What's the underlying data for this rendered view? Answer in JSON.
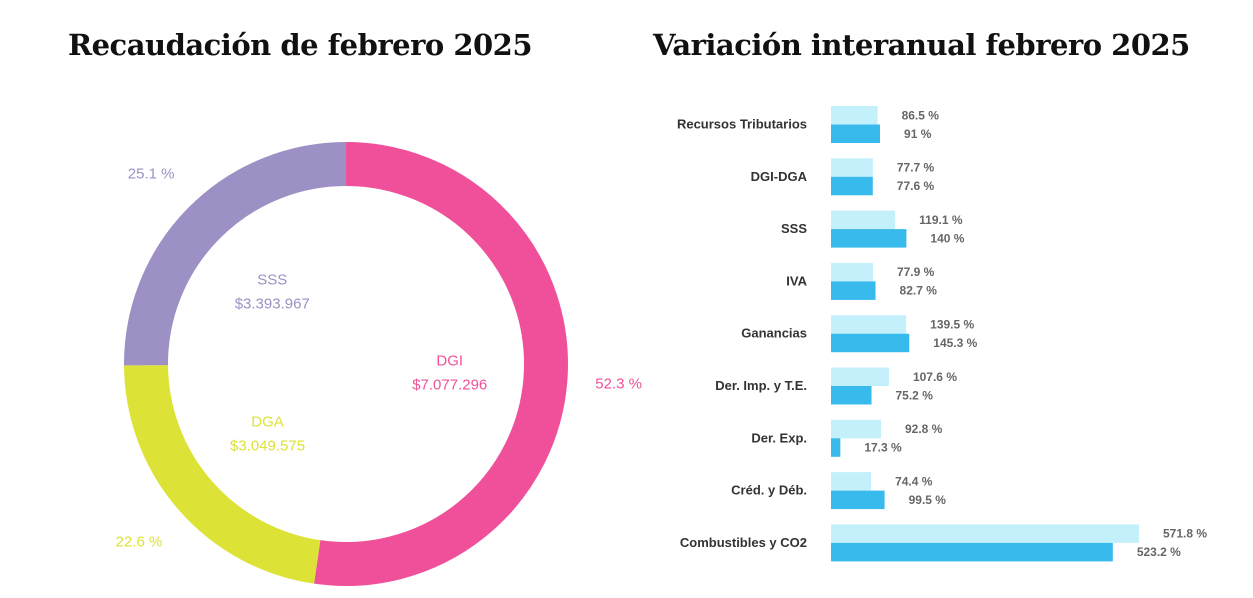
{
  "titles": {
    "left": "Recaudación de febrero 2025",
    "right": "Variación interanual febrero 2025"
  },
  "chart_data": [
    {
      "type": "pie",
      "title": "Recaudación de febrero 2025",
      "slices": [
        {
          "name": "DGI",
          "value": "$7.077.296",
          "amount": 7077296,
          "percent": 52.3,
          "percent_label": "52.3 %",
          "color": "#F0509A"
        },
        {
          "name": "DGA",
          "value": "$3.049.575",
          "amount": 3049575,
          "percent": 22.6,
          "percent_label": "22.6 %",
          "color": "#DCE236"
        },
        {
          "name": "SSS",
          "value": "$3.393.967",
          "amount": 3393967,
          "percent": 25.1,
          "percent_label": "25.1 %",
          "color": "#9D90C4"
        }
      ]
    },
    {
      "type": "bar",
      "title": "Variación interanual febrero 2025",
      "orientation": "horizontal",
      "categories": [
        "Recursos Tributarios",
        "DGI-DGA",
        "SSS",
        "IVA",
        "Ganancias",
        "Der. Imp. y T.E.",
        "Der. Exp.",
        "Créd. y Déb.",
        "Combustibles y CO2"
      ],
      "series": [
        {
          "color": "#C4F0FC",
          "values": [
            86.5,
            77.7,
            119.1,
            77.9,
            139.5,
            107.6,
            92.8,
            74.4,
            571.8
          ],
          "labels": [
            "86.5 %",
            "77.7 %",
            "119.1 %",
            "77.9 %",
            "139.5 %",
            "107.6 %",
            "92.8 %",
            "74.4 %",
            "571.8 %"
          ]
        },
        {
          "color": "#38BAEC",
          "values": [
            91,
            77.6,
            140,
            82.7,
            145.3,
            75.2,
            17.3,
            99.5,
            523.2
          ],
          "labels": [
            "91 %",
            "77.6 %",
            "140 %",
            "82.7 %",
            "145.3 %",
            "75.2 %",
            "17.3 %",
            "99.5 %",
            "523.2 %"
          ]
        }
      ],
      "xlim": [
        0,
        571.8
      ]
    }
  ]
}
